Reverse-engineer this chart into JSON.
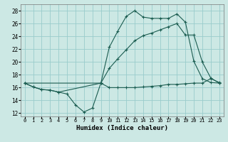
{
  "xlabel": "Humidex (Indice chaleur)",
  "background_color": "#cce8e4",
  "grid_color": "#99cccc",
  "line_color": "#1a5c50",
  "xlim": [
    -0.5,
    23.5
  ],
  "ylim": [
    11.5,
    29.0
  ],
  "xticks": [
    0,
    1,
    2,
    3,
    4,
    5,
    6,
    7,
    8,
    9,
    10,
    11,
    12,
    13,
    14,
    15,
    16,
    17,
    18,
    19,
    20,
    21,
    22,
    23
  ],
  "yticks": [
    12,
    14,
    16,
    18,
    20,
    22,
    24,
    26,
    28
  ],
  "line1_x": [
    0,
    1,
    2,
    3,
    4,
    5,
    6,
    7,
    8,
    9,
    10,
    11,
    12,
    13,
    14,
    15,
    16,
    17,
    18,
    19,
    20,
    21,
    22,
    23
  ],
  "line1_y": [
    16.7,
    16.1,
    15.7,
    15.6,
    15.3,
    15.0,
    13.3,
    12.2,
    12.8,
    16.7,
    16.0,
    16.0,
    16.0,
    16.0,
    16.1,
    16.2,
    16.3,
    16.5,
    16.5,
    16.6,
    16.7,
    16.7,
    17.4,
    16.8
  ],
  "line2_x": [
    0,
    1,
    2,
    3,
    4,
    9,
    10,
    11,
    12,
    13,
    14,
    15,
    16,
    17,
    18,
    19,
    20,
    21,
    22,
    23
  ],
  "line2_y": [
    16.7,
    16.1,
    15.7,
    15.6,
    15.3,
    16.7,
    22.3,
    24.8,
    27.1,
    28.0,
    27.0,
    26.8,
    26.8,
    26.8,
    27.5,
    26.2,
    20.1,
    17.4,
    16.8,
    16.7
  ],
  "line3_x": [
    0,
    9,
    10,
    11,
    12,
    13,
    14,
    15,
    16,
    17,
    18,
    19,
    20,
    21,
    22,
    23
  ],
  "line3_y": [
    16.7,
    16.7,
    19.0,
    20.5,
    21.9,
    23.3,
    24.1,
    24.5,
    25.0,
    25.5,
    26.0,
    24.2,
    24.2,
    20.0,
    17.5,
    16.7
  ]
}
